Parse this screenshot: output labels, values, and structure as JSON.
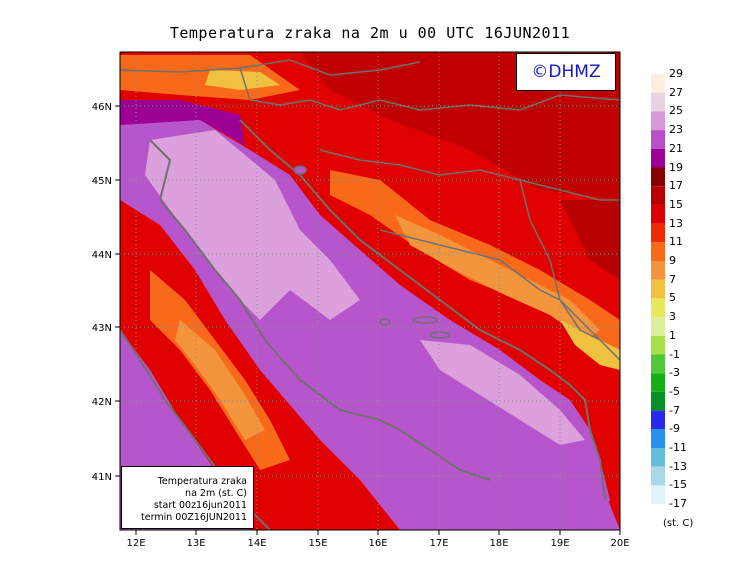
{
  "title": "Temperatura zraka na 2m u 00 UTC 16JUN2011",
  "logo": "©DHMZ",
  "info_box": {
    "line1": "Temperatura zraka",
    "line2": "na 2m (st. C)",
    "line3": "start 00z16jun2011",
    "line4": "termin 00Z16JUN2011"
  },
  "axes": {
    "x_ticks": [
      "12E",
      "13E",
      "14E",
      "15E",
      "16E",
      "17E",
      "18E",
      "19E",
      "20E"
    ],
    "y_ticks": [
      "46N",
      "45N",
      "44N",
      "43N",
      "42N",
      "41N"
    ]
  },
  "legend": {
    "unit": "(st. C)",
    "labels": [
      "29",
      "27",
      "25",
      "23",
      "21",
      "19",
      "17",
      "15",
      "13",
      "11",
      "9",
      "7",
      "5",
      "3",
      "1",
      "-1",
      "-3",
      "-5",
      "-7",
      "-9",
      "-11",
      "-13",
      "-15",
      "-17"
    ],
    "colors": [
      "#fdeee0",
      "#ead2e3",
      "#d898d8",
      "#b850c8",
      "#9d0095",
      "#880000",
      "#b80000",
      "#d80000",
      "#f02a00",
      "#f86a1a",
      "#f3953c",
      "#f0c040",
      "#e8e85c",
      "#dcee9c",
      "#a8e048",
      "#52c73a",
      "#16b016",
      "#089028",
      "#2a2aee",
      "#2a90ee",
      "#64bedc",
      "#a8d8ea",
      "#ddf4f8"
    ]
  },
  "colors": {
    "sea": "#dca0dc",
    "sea_deep": "#b756cc",
    "coast": "#707070",
    "land_warm": "#e00000",
    "land_hot": "#b80000"
  }
}
